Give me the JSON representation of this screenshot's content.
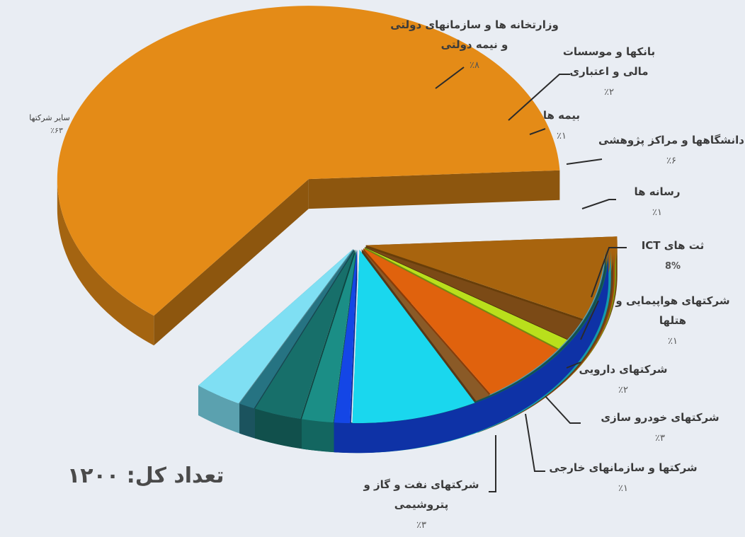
{
  "chart_data": {
    "type": "pie",
    "title": "",
    "total_label": "تعداد کل: ۱۲۰۰",
    "slices": [
      {
        "label": "سایر شرکتها",
        "pct_label": "٪۶۳",
        "value": 63,
        "color": "#e48b17"
      },
      {
        "label_lines": [
          "وزارتخانه ها و سازمانهای دولتی",
          "و نیمه دولتی"
        ],
        "pct_label": "٪۸",
        "value": 8,
        "color": "#a8640e"
      },
      {
        "label_lines": [
          "بانکها و موسسات",
          "مالی و اعتباری"
        ],
        "pct_label": "٪۲",
        "value": 2,
        "color": "#7b4a16"
      },
      {
        "label": "بیمه ها",
        "pct_label": "٪۱",
        "value": 1,
        "color": "#b9e01c"
      },
      {
        "label": "دانشگاهها و مراکز پژوهشی",
        "pct_label": "٪۶",
        "value": 6,
        "color": "#e0620d"
      },
      {
        "label": "رسانه ها",
        "pct_label": "٪۱",
        "value": 1,
        "color": "#8a5a27"
      },
      {
        "label": "ثت های ICT",
        "pct_label": "8%",
        "value": 8,
        "color": "#1ad7ee"
      },
      {
        "label_lines": [
          "شرکتهای هواپیمایی و",
          "هتلها"
        ],
        "pct_label": "٪۱",
        "value": 1,
        "color": "#1446e6"
      },
      {
        "label": "شرکتهای دارویی",
        "pct_label": "٪۲",
        "value": 2,
        "color": "#1b8e86"
      },
      {
        "label": "شرکتهای خودرو سازی",
        "pct_label": "٪۳",
        "value": 3,
        "color": "#176f6a"
      },
      {
        "label": "شرکتها و سازمانهای خارجی",
        "pct_label": "٪۱",
        "value": 1,
        "color": "#267382"
      },
      {
        "label_lines": [
          "شرکتهای نفت و گاز و",
          "پتروشیمی"
        ],
        "pct_label": "٪۳",
        "value": 3,
        "color": "#7fdff3"
      }
    ]
  }
}
